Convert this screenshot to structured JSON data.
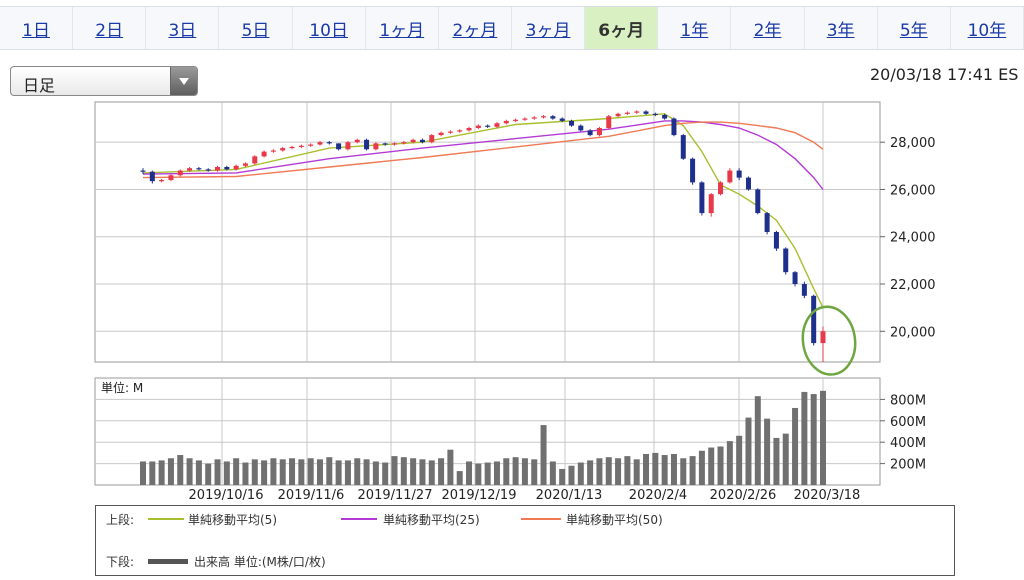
{
  "tabs": [
    {
      "label": "1日",
      "active": false
    },
    {
      "label": "2日",
      "active": false
    },
    {
      "label": "3日",
      "active": false
    },
    {
      "label": "5日",
      "active": false
    },
    {
      "label": "10日",
      "active": false
    },
    {
      "label": "1ヶ月",
      "active": false
    },
    {
      "label": "2ヶ月",
      "active": false
    },
    {
      "label": "3ヶ月",
      "active": false
    },
    {
      "label": "6ヶ月",
      "active": true
    },
    {
      "label": "1年",
      "active": false
    },
    {
      "label": "2年",
      "active": false
    },
    {
      "label": "3年",
      "active": false
    },
    {
      "label": "5年",
      "active": false
    },
    {
      "label": "10年",
      "active": false
    }
  ],
  "period_select": {
    "value": "日足"
  },
  "timestamp": "20/03/18 17:41 ES",
  "colors": {
    "up": "#e8394a",
    "down": "#1f2f8c",
    "ma5": "#a9c02e",
    "ma25": "#b43ad6",
    "ma50": "#ef7a55",
    "volume": "#707070",
    "annotation": "#6ea640"
  },
  "chart_data": [
    {
      "type": "line",
      "title": "",
      "y_ticks": [
        "28,000",
        "26,000",
        "24,000",
        "22,000",
        "20,000"
      ],
      "ylim": [
        18700,
        29700
      ],
      "x_ticks": [
        "2019/10/16",
        "2019/11/6",
        "2019/11/27",
        "2019/12/19",
        "2020/1/13",
        "2020/2/4",
        "2020/2/26",
        "2020/3/18"
      ],
      "grid": true,
      "candles": {
        "open": [
          26800,
          26750,
          26350,
          26400,
          26600,
          26800,
          26900,
          26850,
          26800,
          26950,
          26850,
          27000,
          27100,
          27400,
          27600,
          27650,
          27750,
          27800,
          27850,
          27900,
          28000,
          27950,
          27700,
          28000,
          28100,
          27700,
          27950,
          27900,
          27950,
          28000,
          28100,
          28000,
          28300,
          28400,
          28450,
          28500,
          28600,
          28700,
          28650,
          28800,
          28900,
          28950,
          29000,
          29050,
          29100,
          29000,
          28900,
          28700,
          28500,
          28300,
          28600,
          29100,
          29200,
          29250,
          29300,
          29200,
          29150,
          29000,
          28300,
          27300,
          26300,
          25000,
          25800,
          26300,
          26800,
          26500,
          26000,
          25000,
          24200,
          23500,
          22500,
          22000,
          21500,
          19500
        ],
        "close": [
          26750,
          26350,
          26400,
          26600,
          26800,
          26900,
          26850,
          26800,
          26950,
          26850,
          27000,
          27100,
          27400,
          27600,
          27650,
          27750,
          27800,
          27850,
          27900,
          28000,
          27950,
          27700,
          28000,
          28100,
          27700,
          27950,
          27900,
          27950,
          28000,
          28100,
          28000,
          28300,
          28400,
          28450,
          28500,
          28600,
          28700,
          28650,
          28800,
          28900,
          28950,
          29000,
          29050,
          29100,
          29000,
          28900,
          28700,
          28500,
          28300,
          28600,
          29100,
          29200,
          29250,
          29300,
          29200,
          29150,
          29000,
          28300,
          27300,
          26300,
          25000,
          25800,
          26300,
          26800,
          26500,
          26000,
          25000,
          24200,
          23500,
          22500,
          22000,
          21500,
          19500,
          20000
        ],
        "high": [
          26900,
          26800,
          26450,
          26650,
          26850,
          26950,
          26950,
          26900,
          27000,
          27000,
          27050,
          27150,
          27450,
          27650,
          27700,
          27800,
          27850,
          27900,
          27950,
          28050,
          28050,
          27950,
          28050,
          28150,
          28150,
          28000,
          27980,
          28000,
          28050,
          28150,
          28150,
          28350,
          28450,
          28500,
          28550,
          28650,
          28750,
          28750,
          28850,
          28950,
          29000,
          29050,
          29100,
          29150,
          29150,
          29050,
          28950,
          28750,
          28550,
          28650,
          29150,
          29250,
          29300,
          29350,
          29350,
          29250,
          29200,
          29050,
          28350,
          27350,
          26350,
          25850,
          26350,
          26900,
          26900,
          26550,
          26050,
          25050,
          24250,
          23550,
          22550,
          22100,
          21550,
          20200
        ],
        "low": [
          26650,
          26250,
          26300,
          26350,
          26550,
          26750,
          26800,
          26750,
          26750,
          26800,
          26800,
          26950,
          27050,
          27350,
          27550,
          27600,
          27700,
          27750,
          27800,
          27850,
          27900,
          27650,
          27650,
          27950,
          27650,
          27650,
          27850,
          27850,
          27900,
          27950,
          27950,
          27950,
          28250,
          28350,
          28400,
          28450,
          28550,
          28600,
          28600,
          28750,
          28850,
          28900,
          28950,
          29000,
          28950,
          28850,
          28650,
          28450,
          28250,
          28250,
          28550,
          29050,
          29150,
          29200,
          29150,
          29100,
          28950,
          28250,
          27250,
          26200,
          24900,
          24850,
          25750,
          26250,
          26400,
          25950,
          24950,
          24100,
          23400,
          22400,
          21900,
          21400,
          19400,
          18700
        ]
      },
      "series": [
        {
          "name": "単純移動平均(5)",
          "x": [
            0,
            10,
            20,
            30,
            40,
            50,
            56,
            58,
            60,
            62,
            64,
            66,
            68,
            70,
            72,
            73
          ],
          "y": [
            26700,
            26850,
            27750,
            28000,
            28750,
            29000,
            29200,
            28700,
            27600,
            26200,
            25800,
            25300,
            24700,
            23500,
            21800,
            21000
          ]
        },
        {
          "name": "単純移動平均(25)",
          "x": [
            0,
            10,
            20,
            30,
            40,
            50,
            56,
            58,
            60,
            62,
            64,
            66,
            68,
            70,
            72,
            73
          ],
          "y": [
            26650,
            26700,
            27300,
            27750,
            28150,
            28550,
            28900,
            28900,
            28850,
            28750,
            28600,
            28300,
            27900,
            27300,
            26500,
            26000
          ]
        },
        {
          "name": "単純移動平均(50)",
          "x": [
            0,
            10,
            20,
            30,
            40,
            50,
            56,
            58,
            60,
            62,
            64,
            66,
            68,
            70,
            72,
            73
          ],
          "y": [
            26500,
            26550,
            26950,
            27350,
            27800,
            28250,
            28700,
            28800,
            28850,
            28850,
            28800,
            28700,
            28600,
            28400,
            28000,
            27700
          ]
        }
      ]
    },
    {
      "type": "bar",
      "unit_label": "単位: M",
      "y_ticks": [
        "800M",
        "600M",
        "400M",
        "200M"
      ],
      "ylim": [
        0,
        1000
      ],
      "values": [
        220,
        220,
        230,
        250,
        280,
        250,
        230,
        200,
        240,
        220,
        250,
        210,
        240,
        230,
        250,
        240,
        250,
        240,
        250,
        240,
        260,
        230,
        230,
        250,
        240,
        220,
        210,
        270,
        260,
        250,
        240,
        230,
        250,
        330,
        130,
        220,
        200,
        210,
        220,
        250,
        260,
        250,
        240,
        560,
        220,
        150,
        180,
        210,
        230,
        250,
        260,
        250,
        270,
        240,
        290,
        300,
        280,
        290,
        250,
        270,
        320,
        350,
        360,
        410,
        460,
        630,
        830,
        620,
        440,
        480,
        720,
        870,
        850,
        880
      ]
    }
  ],
  "legend": {
    "top_label": "上段:",
    "bottom_label": "下段:",
    "items": [
      "単純移動平均(5)",
      "単純移動平均(25)",
      "単純移動平均(50)"
    ],
    "volume_label": "出来高 単位:(M株/口/枚)"
  }
}
